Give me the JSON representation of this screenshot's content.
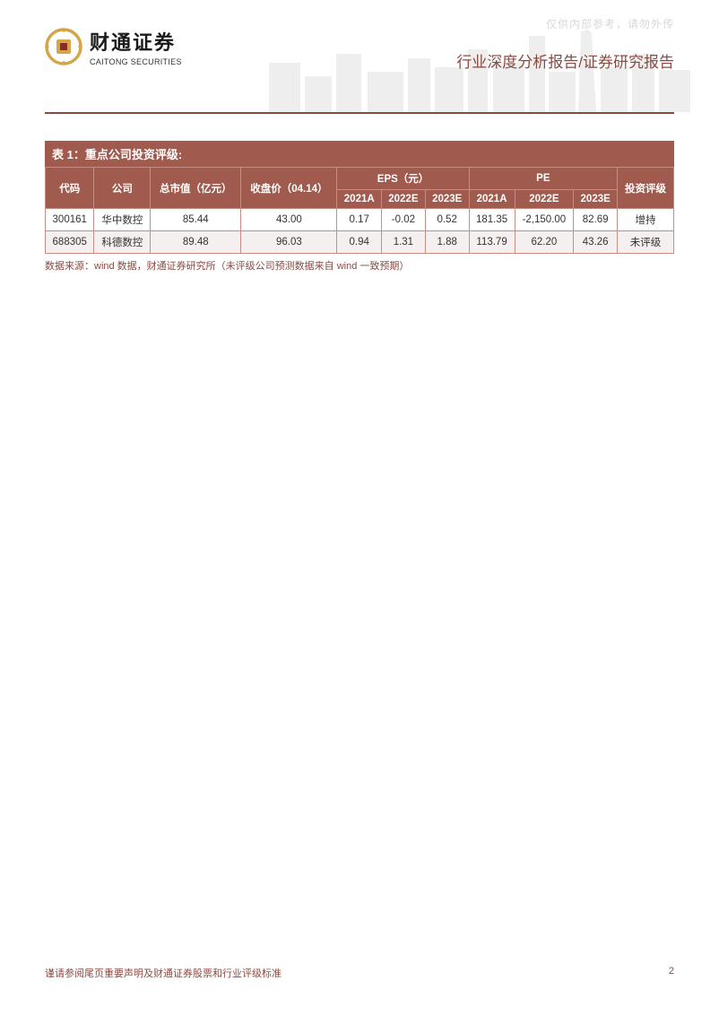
{
  "watermark": "仅供内部参考，请勿外传",
  "header": {
    "logo_cn": "财通证券",
    "logo_en": "CAITONG SECURITIES",
    "report_type": "行业深度分析报告/证券研究报告"
  },
  "table": {
    "title": "表 1：重点公司投资评级:",
    "columns": {
      "code": "代码",
      "company": "公司",
      "mktcap": "总市值（亿元）",
      "close": "收盘价（04.14）",
      "eps_group": "EPS（元）",
      "pe_group": "PE",
      "rating": "投资评级",
      "y2021a": "2021A",
      "y2022e": "2022E",
      "y2023e": "2023E"
    },
    "rows": [
      {
        "code": "300161",
        "company": "华中数控",
        "mktcap": "85.44",
        "close": "43.00",
        "eps21": "0.17",
        "eps22": "-0.02",
        "eps23": "0.52",
        "pe21": "181.35",
        "pe22": "-2,150.00",
        "pe23": "82.69",
        "rating": "增持"
      },
      {
        "code": "688305",
        "company": "科德数控",
        "mktcap": "89.48",
        "close": "96.03",
        "eps21": "0.94",
        "eps22": "1.31",
        "eps23": "1.88",
        "pe21": "113.79",
        "pe22": "62.20",
        "pe23": "43.26",
        "rating": "未评级"
      }
    ],
    "source": "数据来源：wind 数据，财通证券研究所（未评级公司预测数据来自 wind 一致预期）",
    "colors": {
      "header_bg": "#a05a4e",
      "header_text": "#ffffff",
      "border": "#c88d82",
      "row_alt_bg": "#f5f0ef",
      "accent": "#8a4a42",
      "text": "#333333"
    }
  },
  "footer": {
    "note": "谨请参阅尾页重要声明及财通证券股票和行业评级标准",
    "page": "2"
  }
}
